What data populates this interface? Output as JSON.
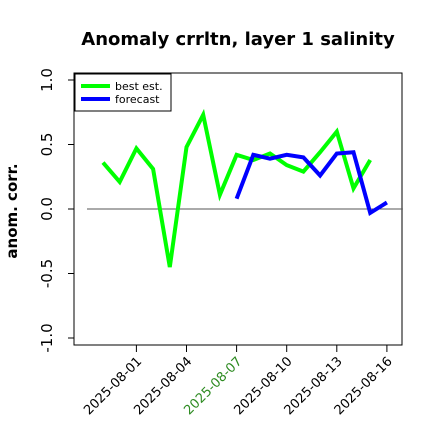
{
  "chart_data": {
    "type": "line",
    "title": "Anomaly crrltn, layer 1 salinity",
    "ylabel": "anom. corr.",
    "xlabel": "",
    "ylim": [
      -1.0,
      1.0
    ],
    "yticks": [
      "-1.0",
      "-0.5",
      "0.0",
      "0.5",
      "1.0"
    ],
    "x_dates": [
      "2025-07-30",
      "2025-07-31",
      "2025-08-01",
      "2025-08-02",
      "2025-08-03",
      "2025-08-04",
      "2025-08-05",
      "2025-08-06",
      "2025-08-07",
      "2025-08-08",
      "2025-08-09",
      "2025-08-10",
      "2025-08-11",
      "2025-08-12",
      "2025-08-13",
      "2025-08-14",
      "2025-08-15",
      "2025-08-16"
    ],
    "xticks": [
      {
        "label": "2025-08-01",
        "color": "#000000"
      },
      {
        "label": "2025-08-04",
        "color": "#000000"
      },
      {
        "label": "2025-08-07",
        "color": "#2e8b22"
      },
      {
        "label": "2025-08-10",
        "color": "#000000"
      },
      {
        "label": "2025-08-13",
        "color": "#000000"
      },
      {
        "label": "2025-08-16",
        "color": "#000000"
      }
    ],
    "reference_line": 0.0,
    "legend_position": "top-left",
    "series": [
      {
        "name": "best est.",
        "color": "#00ff00",
        "x": [
          "2025-07-30",
          "2025-07-31",
          "2025-08-01",
          "2025-08-02",
          "2025-08-03",
          "2025-08-04",
          "2025-08-05",
          "2025-08-06",
          "2025-08-07",
          "2025-08-08",
          "2025-08-09",
          "2025-08-10",
          "2025-08-11",
          "2025-08-12",
          "2025-08-13",
          "2025-08-14",
          "2025-08-15",
          "2025-08-16"
        ],
        "values": [
          0.36,
          0.21,
          0.47,
          0.31,
          -0.45,
          0.48,
          0.73,
          0.11,
          0.42,
          0.38,
          0.43,
          0.34,
          0.29,
          0.44,
          0.6,
          0.16,
          0.38,
          null
        ]
      },
      {
        "name": "forecast",
        "color": "#0000ff",
        "x": [
          "2025-08-07",
          "2025-08-08",
          "2025-08-09",
          "2025-08-10",
          "2025-08-11",
          "2025-08-12",
          "2025-08-13",
          "2025-08-14",
          "2025-08-15",
          "2025-08-16"
        ],
        "values": [
          0.08,
          0.42,
          0.39,
          0.42,
          0.4,
          0.26,
          0.43,
          0.44,
          -0.03,
          0.05
        ]
      }
    ]
  }
}
